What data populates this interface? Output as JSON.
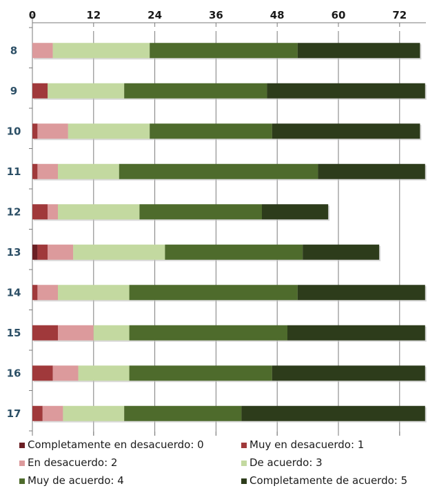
{
  "chart_data": {
    "type": "bar",
    "orientation": "horizontal",
    "stacked": true,
    "x_axis_position": "top",
    "xlim": [
      0,
      78
    ],
    "x_ticks": [
      0,
      12,
      24,
      36,
      48,
      60,
      72
    ],
    "grid": true,
    "legend_position": "bottom",
    "categories": [
      "8",
      "9",
      "10",
      "11",
      "12",
      "13",
      "14",
      "15",
      "16",
      "17"
    ],
    "series": [
      {
        "name": "Completamente en desacuerdo: 0",
        "color": "#6b1f24",
        "values": [
          0,
          0,
          0,
          0,
          0,
          1,
          0,
          0,
          0,
          0
        ]
      },
      {
        "name": "Muy en desacuerdo: 1",
        "color": "#a0393b",
        "values": [
          0,
          3,
          1,
          1,
          3,
          2,
          1,
          5,
          4,
          2
        ]
      },
      {
        "name": "En desacuerdo: 2",
        "color": "#dc9a9c",
        "values": [
          4,
          0,
          6,
          4,
          2,
          5,
          4,
          7,
          5,
          4
        ]
      },
      {
        "name": "De acuerdo: 3",
        "color": "#c3d9a0",
        "values": [
          19,
          15,
          16,
          12,
          16,
          18,
          14,
          7,
          10,
          12
        ]
      },
      {
        "name": "Muy de acuerdo: 4",
        "color": "#4e6b2c",
        "values": [
          29,
          28,
          24,
          39,
          24,
          27,
          33,
          31,
          28,
          23
        ]
      },
      {
        "name": "Completamente de acuerdo: 5",
        "color": "#2d3c1b",
        "values": [
          24,
          31,
          29,
          21,
          13,
          15,
          25,
          27,
          30,
          36
        ]
      }
    ]
  }
}
